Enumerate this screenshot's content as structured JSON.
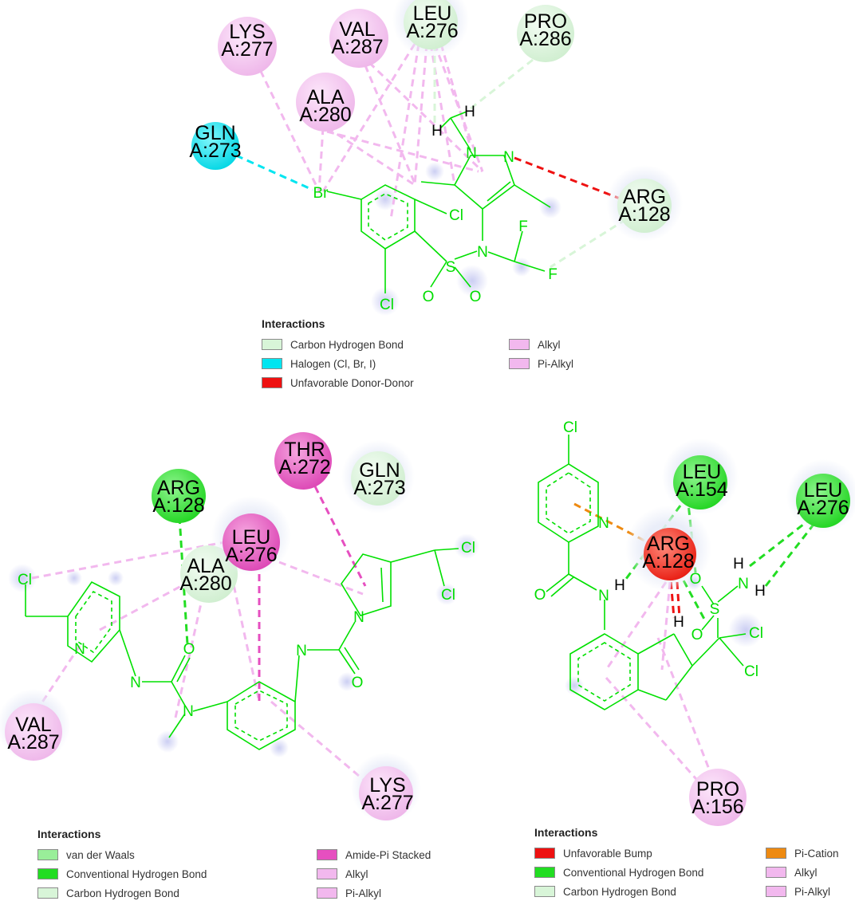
{
  "colors": {
    "bond": "#00e000",
    "atom_text": "#00dd00",
    "hetero_text": "#000000",
    "halogen": "#00e5f0",
    "alkyl": "#f2b8ee",
    "pi_alkyl": "#f2b8ee",
    "carbon_hbond": "#d8f5d8",
    "conventional_hbond": "#22dd22",
    "unfavorable": "#ee1111",
    "pi_cation": "#ee8a11",
    "amide_pi": "#e64fc0",
    "vdw": "#99ee99"
  },
  "panels": [
    {
      "id": "top",
      "residues": [
        {
          "id": "lys277",
          "line1": "LYS",
          "line2": "A:277",
          "kind": "alkyl"
        },
        {
          "id": "val287",
          "line1": "VAL",
          "line2": "A:287",
          "kind": "alkyl"
        },
        {
          "id": "leu276",
          "line1": "LEU",
          "line2": "A:276",
          "kind": "carbon"
        },
        {
          "id": "pro286",
          "line1": "PRO",
          "line2": "A:286",
          "kind": "carbon"
        },
        {
          "id": "ala280",
          "line1": "ALA",
          "line2": "A:280",
          "kind": "alkyl"
        },
        {
          "id": "gln273",
          "line1": "GLN",
          "line2": "A:273",
          "kind": "halogen"
        },
        {
          "id": "arg128",
          "line1": "ARG",
          "line2": "A:128",
          "kind": "carbon"
        }
      ],
      "atoms": [
        "Br",
        "Cl",
        "Cl",
        "N",
        "S",
        "O",
        "O",
        "F",
        "F",
        "N",
        "N",
        "H",
        "H"
      ],
      "legend": {
        "title": "Interactions",
        "items": [
          {
            "label": "Carbon Hydrogen Bond",
            "color": "#d8f5d8"
          },
          {
            "label": "Alkyl",
            "color": "#f2b8ee"
          },
          {
            "label": "Halogen (Cl, Br, I)",
            "color": "#00e5f0"
          },
          {
            "label": "Pi-Alkyl",
            "color": "#f2b8ee"
          },
          {
            "label": "Unfavorable Donor-Donor",
            "color": "#ee1111"
          }
        ]
      }
    },
    {
      "id": "bottom-left",
      "residues": [
        {
          "id": "thr272",
          "line1": "THR",
          "line2": "A:272",
          "kind": "amide"
        },
        {
          "id": "gln273",
          "line1": "GLN",
          "line2": "A:273",
          "kind": "carbon"
        },
        {
          "id": "arg128",
          "line1": "ARG",
          "line2": "A:128",
          "kind": "conv"
        },
        {
          "id": "leu276",
          "line1": "LEU",
          "line2": "A:276",
          "kind": "amide"
        },
        {
          "id": "ala280",
          "line1": "ALA",
          "line2": "A:280",
          "kind": "carbon"
        },
        {
          "id": "val287",
          "line1": "VAL",
          "line2": "A:287",
          "kind": "alkyl"
        },
        {
          "id": "lys277",
          "line1": "LYS",
          "line2": "A:277",
          "kind": "alkyl"
        }
      ],
      "atoms": [
        "Cl",
        "Cl",
        "Cl",
        "N",
        "N",
        "O",
        "N",
        "N",
        "O",
        "N"
      ],
      "legend": {
        "title": "Interactions",
        "items": [
          {
            "label": "van der Waals",
            "color": "#99ee99"
          },
          {
            "label": "Amide-Pi Stacked",
            "color": "#e64fc0"
          },
          {
            "label": "Conventional Hydrogen Bond",
            "color": "#22dd22"
          },
          {
            "label": "Alkyl",
            "color": "#f2b8ee"
          },
          {
            "label": "Carbon Hydrogen Bond",
            "color": "#d8f5d8"
          },
          {
            "label": "Pi-Alkyl",
            "color": "#f2b8ee"
          }
        ]
      }
    },
    {
      "id": "bottom-right",
      "residues": [
        {
          "id": "leu154",
          "line1": "LEU",
          "line2": "A:154",
          "kind": "conv"
        },
        {
          "id": "leu276",
          "line1": "LEU",
          "line2": "A:276",
          "kind": "conv"
        },
        {
          "id": "arg128",
          "line1": "ARG",
          "line2": "A:128",
          "kind": "unfav"
        },
        {
          "id": "pro156",
          "line1": "PRO",
          "line2": "A:156",
          "kind": "alkyl"
        }
      ],
      "atoms": [
        "Cl",
        "N",
        "O",
        "N",
        "H",
        "O",
        "S",
        "O",
        "N",
        "H",
        "H",
        "H",
        "Cl",
        "Cl"
      ],
      "legend": {
        "title": "Interactions",
        "items": [
          {
            "label": "Unfavorable Bump",
            "color": "#ee1111"
          },
          {
            "label": "Pi-Cation",
            "color": "#ee8a11"
          },
          {
            "label": "Conventional Hydrogen Bond",
            "color": "#22dd22"
          },
          {
            "label": "Alkyl",
            "color": "#f2b8ee"
          },
          {
            "label": "Carbon Hydrogen Bond",
            "color": "#d8f5d8"
          },
          {
            "label": "Pi-Alkyl",
            "color": "#f2b8ee"
          }
        ]
      }
    }
  ]
}
